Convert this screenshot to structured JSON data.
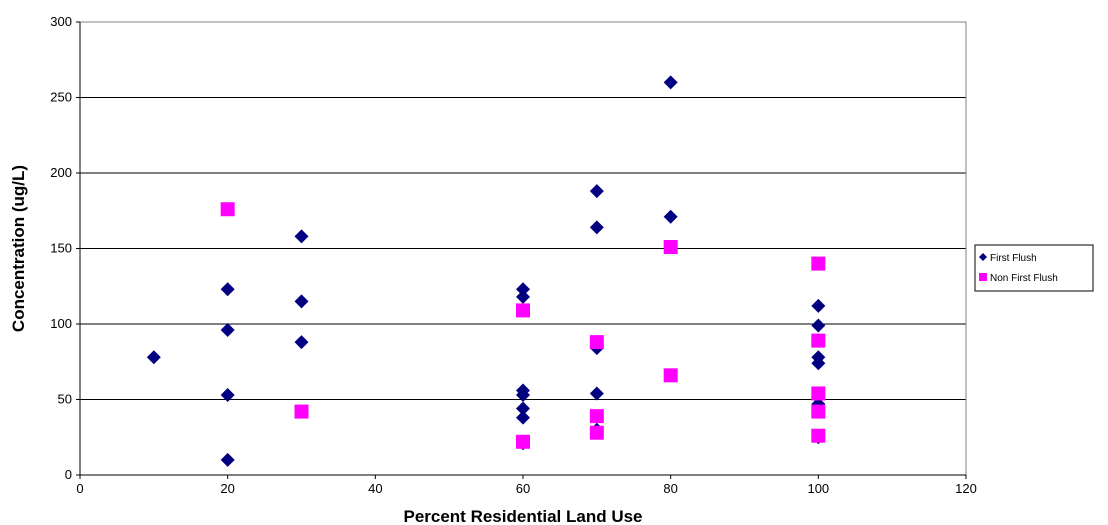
{
  "chart_data": {
    "type": "scatter",
    "title": "",
    "xlabel": "Percent Residential Land Use",
    "ylabel": "Concentration (ug/L)",
    "xlim": [
      0,
      120
    ],
    "ylim": [
      0,
      300
    ],
    "xticks": [
      "0",
      "20",
      "40",
      "60",
      "80",
      "100",
      "120"
    ],
    "yticks": [
      "0",
      "50",
      "100",
      "150",
      "200",
      "250",
      "300"
    ],
    "grid": "horizontal",
    "legend_position": "right",
    "series": [
      {
        "name": "First Flush",
        "marker": "diamond",
        "color": "#000080",
        "points": [
          [
            10,
            78
          ],
          [
            20,
            123
          ],
          [
            20,
            96
          ],
          [
            20,
            53
          ],
          [
            20,
            10
          ],
          [
            30,
            158
          ],
          [
            30,
            115
          ],
          [
            30,
            88
          ],
          [
            60,
            123
          ],
          [
            60,
            118
          ],
          [
            60,
            56
          ],
          [
            60,
            53
          ],
          [
            60,
            44
          ],
          [
            60,
            38
          ],
          [
            60,
            21
          ],
          [
            70,
            188
          ],
          [
            70,
            164
          ],
          [
            70,
            84
          ],
          [
            70,
            54
          ],
          [
            70,
            30
          ],
          [
            80,
            260
          ],
          [
            80,
            171
          ],
          [
            100,
            112
          ],
          [
            100,
            99
          ],
          [
            100,
            78
          ],
          [
            100,
            74
          ],
          [
            100,
            47
          ],
          [
            100,
            44
          ],
          [
            100,
            25
          ]
        ]
      },
      {
        "name": "Non First Flush",
        "marker": "square",
        "color": "#FF00FF",
        "points": [
          [
            20,
            176
          ],
          [
            30,
            42
          ],
          [
            60,
            109
          ],
          [
            60,
            22
          ],
          [
            70,
            88
          ],
          [
            70,
            39
          ],
          [
            70,
            28
          ],
          [
            80,
            151
          ],
          [
            80,
            66
          ],
          [
            100,
            140
          ],
          [
            100,
            89
          ],
          [
            100,
            54
          ],
          [
            100,
            42
          ],
          [
            100,
            26
          ]
        ]
      }
    ]
  }
}
